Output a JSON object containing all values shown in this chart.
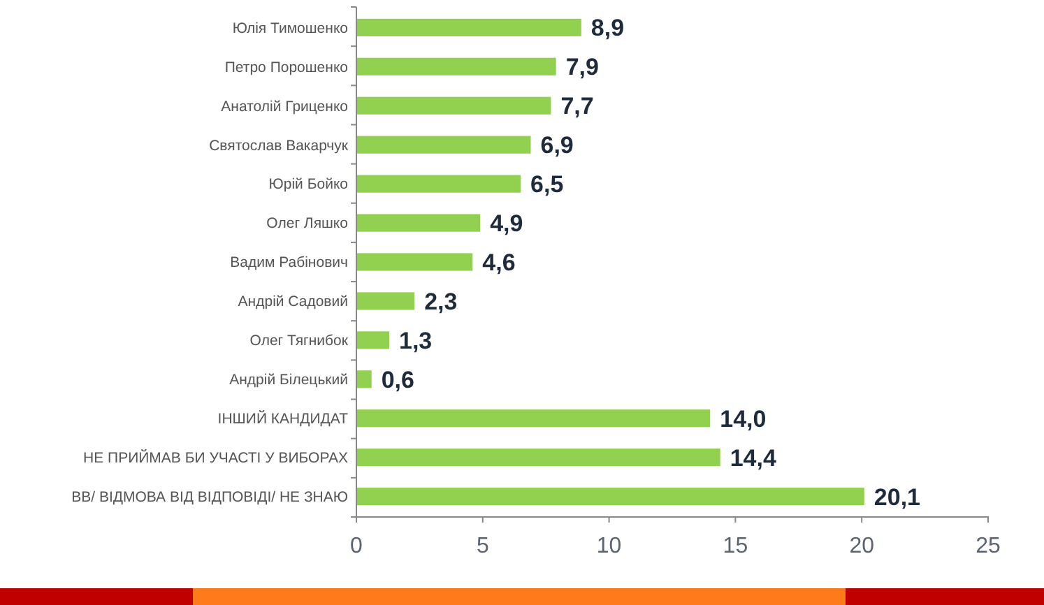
{
  "chart_data": {
    "type": "bar",
    "orientation": "horizontal",
    "categories": [
      "Юлія Тимошенко",
      "Петро Порошенко",
      "Анатолій Гриценко",
      "Святослав Вакарчук",
      "Юрій Бойко",
      "Олег Ляшко",
      "Вадим Рабінович",
      "Андрій Садовий",
      "Олег Тягнибок",
      "Андрій Білецький",
      "ІНШИЙ КАНДИДАТ",
      "НЕ ПРИЙМАВ БИ УЧАСТІ У ВИБОРАХ",
      "ВВ/ ВІДМОВА ВІД ВІДПОВІДІ/ НЕ ЗНАЮ"
    ],
    "values": [
      8.9,
      7.9,
      7.7,
      6.9,
      6.5,
      4.9,
      4.6,
      2.3,
      1.3,
      0.6,
      14.0,
      14.4,
      20.1
    ],
    "value_labels": [
      "8,9",
      "7,9",
      "7,7",
      "6,9",
      "6,5",
      "4,9",
      "4,6",
      "2,3",
      "1,3",
      "0,6",
      "14,0",
      "14,4",
      "20,1"
    ],
    "color": "#92d050",
    "xlim": [
      0,
      25
    ],
    "xticks": [
      0,
      5,
      10,
      15,
      20,
      25
    ]
  }
}
